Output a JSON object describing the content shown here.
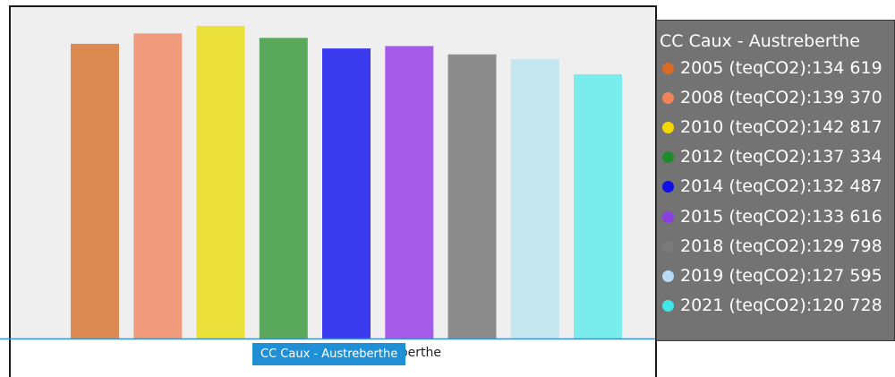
{
  "chart_data": {
    "type": "bar",
    "title": "CC Caux - Austreberthe",
    "categories": [
      "CC Caux - Austreberthe"
    ],
    "series": [
      {
        "name": "2005 (teqCO2)",
        "values": [
          134619
        ],
        "color": "#dc8a52",
        "legend_color": "#d86a24"
      },
      {
        "name": "2008 (teqCO2)",
        "values": [
          139370
        ],
        "color": "#ef9b7c",
        "legend_color": "#f38459"
      },
      {
        "name": "2010 (teqCO2)",
        "values": [
          142817
        ],
        "color": "#ece13a",
        "legend_color": "#f5d800"
      },
      {
        "name": "2012 (teqCO2)",
        "values": [
          137334
        ],
        "color": "#59a85b",
        "legend_color": "#1f8a2a"
      },
      {
        "name": "2014 (teqCO2)",
        "values": [
          132487
        ],
        "color": "#3a3aee",
        "legend_color": "#0f0fe6"
      },
      {
        "name": "2015 (teqCO2)",
        "values": [
          133616
        ],
        "color": "#a65be8",
        "legend_color": "#8a3fe0"
      },
      {
        "name": "2018 (teqCO2)",
        "values": [
          129798
        ],
        "color": "#8c8c8c",
        "legend_color": "#7a7a7a"
      },
      {
        "name": "2019 (teqCO2)",
        "values": [
          127595
        ],
        "color": "#c4e6ef",
        "legend_color": "#b8dcf5"
      },
      {
        "name": "2021 (teqCO2)",
        "values": [
          120728
        ],
        "color": "#7aeceb",
        "legend_color": "#3fe6e6"
      }
    ],
    "ylim": [
      0,
      144000
    ],
    "grid": false,
    "legend_position": "right"
  },
  "legend": {
    "title": "CC Caux - Austreberthe",
    "items": [
      {
        "label": "2005 (teqCO2):134 619"
      },
      {
        "label": "2008 (teqCO2):139 370"
      },
      {
        "label": "2010 (teqCO2):142 817"
      },
      {
        "label": "2012 (teqCO2):137 334"
      },
      {
        "label": "2014 (teqCO2):132 487"
      },
      {
        "label": "2015 (teqCO2):133 616"
      },
      {
        "label": "2018 (teqCO2):129 798"
      },
      {
        "label": "2019 (teqCO2):127 595"
      },
      {
        "label": "2021 (teqCO2):120 728"
      }
    ]
  },
  "tooltip": {
    "text": "CC Caux - Austreberthe"
  },
  "x_axis_label": "CC Caux - Austreberthe",
  "colors": {
    "plot_background": "#efefef",
    "axis_line": "#3b8fd3",
    "legend_background": "#737373"
  }
}
